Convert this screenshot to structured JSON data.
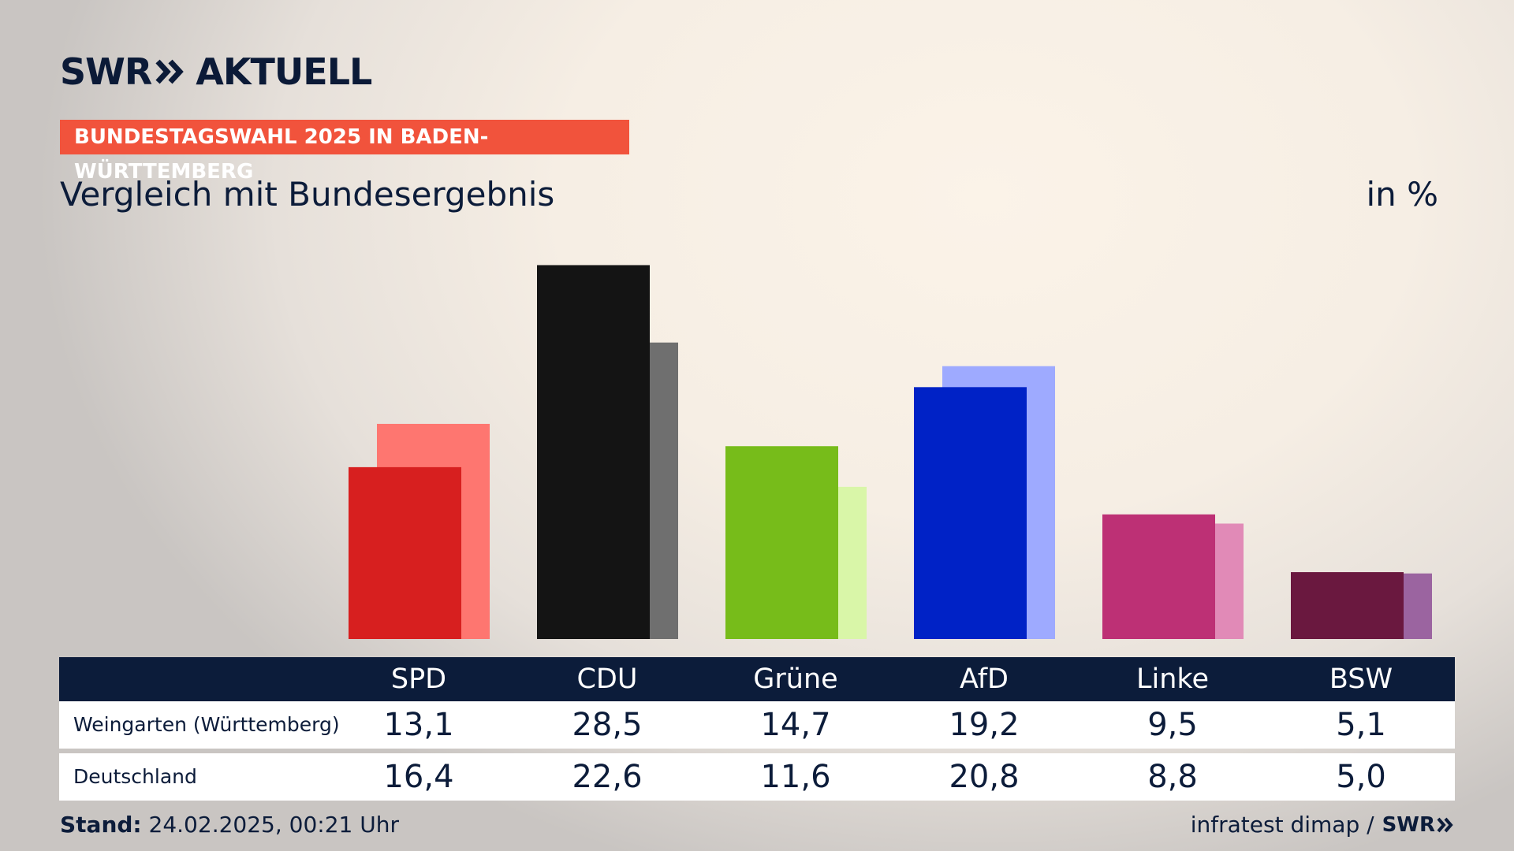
{
  "header": {
    "logo_text_1": "SWR",
    "logo_text_2": "AKTUELL",
    "kicker": "BUNDESTAGSWAHL 2025 IN BADEN-WÜRTTEMBERG",
    "subtitle": "Vergleich mit Bundesergebnis",
    "unit": "in %"
  },
  "colors": {
    "navy": "#0c1c3a",
    "kicker_bg": "#f1533c"
  },
  "chart_data": {
    "type": "bar",
    "title": "Vergleich mit Bundesergebnis",
    "ylabel": "in %",
    "ylim": [
      0,
      30
    ],
    "categories": [
      "SPD",
      "CDU",
      "Grüne",
      "AfD",
      "Linke",
      "BSW"
    ],
    "series": [
      {
        "name": "Weingarten (Württemberg)",
        "values": [
          13.1,
          28.5,
          14.7,
          19.2,
          9.5,
          5.1
        ],
        "labels": [
          "13,1",
          "28,5",
          "14,7",
          "19,2",
          "9,5",
          "5,1"
        ],
        "colors": [
          "#d71f1f",
          "#141414",
          "#77bc1a",
          "#0022c6",
          "#bd3075",
          "#6a183f"
        ]
      },
      {
        "name": "Deutschland",
        "values": [
          16.4,
          22.6,
          11.6,
          20.8,
          8.8,
          5.0
        ],
        "labels": [
          "16,4",
          "22,6",
          "11,6",
          "20,8",
          "8,8",
          "5,0"
        ],
        "colors": [
          "#fe7670",
          "#6f6f6f",
          "#d9f6a8",
          "#9eaaff",
          "#e18ab7",
          "#9b64a0"
        ]
      }
    ]
  },
  "footer": {
    "stand_label": "Stand:",
    "stand_value": "24.02.2025, 00:21 Uhr",
    "source": "infratest dimap /",
    "source_brand": "SWR"
  }
}
